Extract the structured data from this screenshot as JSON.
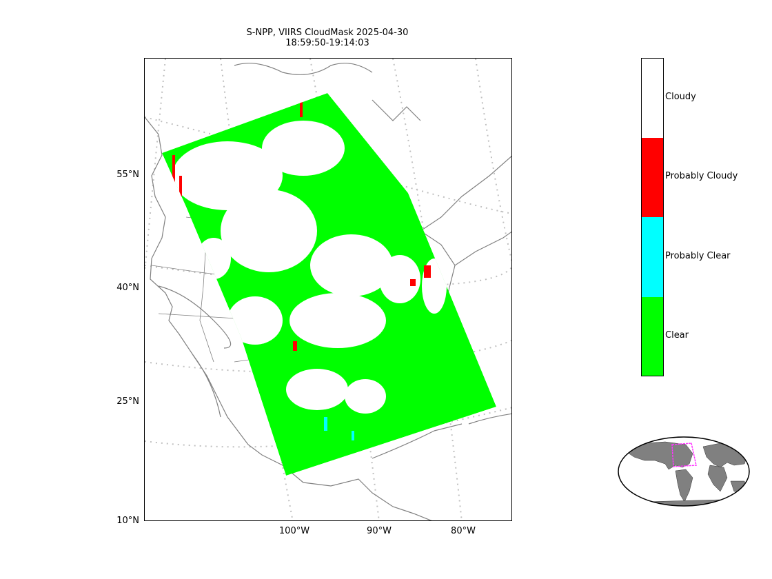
{
  "title": {
    "line1": "S-NPP, VIIRS CloudMask 2025-04-30",
    "line2": "18:59:50-19:14:03"
  },
  "map": {
    "lat_ticks": [
      "55°N",
      "40°N",
      "25°N",
      "10°N"
    ],
    "lon_ticks": [
      "100°W",
      "90°W",
      "80°W"
    ],
    "land_outline_color": "#808080",
    "graticule_color": "#c0c0c0"
  },
  "legend": {
    "classes": [
      {
        "label": "Cloudy",
        "color": "#ffffff"
      },
      {
        "label": "Probably Cloudy",
        "color": "#ff0000"
      },
      {
        "label": "Probably Clear",
        "color": "#00ffff"
      },
      {
        "label": "Clear",
        "color": "#00ff00"
      }
    ]
  },
  "inset": {
    "land_color": "#808080",
    "footprint_color": "#ff33ff"
  }
}
